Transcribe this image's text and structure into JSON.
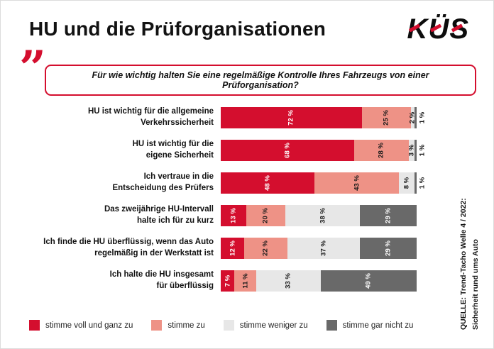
{
  "header": {
    "title": "HU und die Prüforganisationen",
    "logo": "KÜS"
  },
  "question": "Für wie wichtig halten Sie eine regelmäßige Kontrolle Ihres Fahrzeugs von einer Prüforganisation?",
  "source": {
    "line1": "QUELLE: Trend-Tacho Welle 4 / 2022:",
    "line2": "Sicherheit rund ums Auto"
  },
  "colors": {
    "accent_red": "#d40e2e"
  },
  "chart_data": {
    "type": "bar",
    "orientation": "horizontal",
    "stacked": true,
    "unit": "%",
    "xlim": [
      0,
      100
    ],
    "grid": false,
    "legend_position": "bottom",
    "categories": [
      {
        "lines": [
          "HU ist wichtig für die allgemeine",
          "Verkehrssicherheit"
        ]
      },
      {
        "lines": [
          "HU ist wichtig für die",
          "eigene Sicherheit"
        ]
      },
      {
        "lines": [
          "Ich vertraue in die",
          "Entscheidung des Prüfers"
        ]
      },
      {
        "lines": [
          "Das zweijährige HU-Intervall",
          "halte ich für zu kurz"
        ]
      },
      {
        "lines": [
          "Ich finde die HU überflüssig, wenn das Auto",
          "regelmäßig in der Werkstatt ist"
        ]
      },
      {
        "lines": [
          "Ich halte die HU insgesamt",
          "für überflüssig"
        ]
      }
    ],
    "series": [
      {
        "name": "stimme voll und ganz zu",
        "color": "#d40e2e",
        "label_color": "#ffffff",
        "values": [
          72,
          68,
          48,
          13,
          12,
          7
        ]
      },
      {
        "name": "stimme zu",
        "color": "#ee9286",
        "label_color": "#1a1a1a",
        "values": [
          25,
          28,
          43,
          20,
          22,
          11
        ]
      },
      {
        "name": "stimme weniger zu",
        "color": "#e7e7e7",
        "label_color": "#1a1a1a",
        "values": [
          2,
          3,
          8,
          38,
          37,
          33
        ]
      },
      {
        "name": "stimme gar nicht zu",
        "color": "#696969",
        "label_color": "#ffffff",
        "values": [
          1,
          1,
          1,
          29,
          29,
          49
        ]
      }
    ]
  }
}
